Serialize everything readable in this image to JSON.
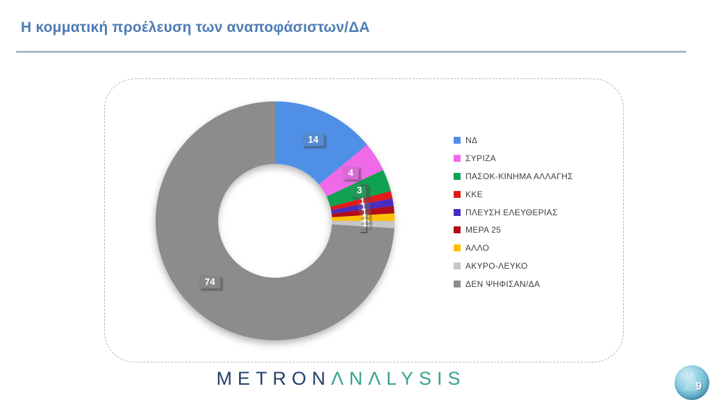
{
  "page": {
    "title": "Η κομματική προέλευση των αναποφάσιστων/ΔΑ",
    "page_number": "9"
  },
  "accents": {
    "title_color": "#4d7cb3",
    "title_rule_color": "#9fb4c7",
    "badge_color": "#6cb8d4",
    "logo_left_color": "#24416e",
    "logo_right_color": "#35a390"
  },
  "footer": {
    "logo_left": "METRON",
    "logo_right": "ΛΝΛLYSIS"
  },
  "chart_data": {
    "type": "pie",
    "subtype": "donut",
    "title": "Η κομματική προέλευση των αναποφάσιστων/ΔΑ",
    "start_angle_deg": 0,
    "direction": "clockwise",
    "legend_position": "right",
    "total": 100,
    "inner_radius_ratio": 0.48,
    "series": [
      {
        "label": "ΝΔ",
        "value": 14,
        "color": "#4f90e6"
      },
      {
        "label": "ΣΥΡΙΖΑ",
        "value": 4,
        "color": "#ee6ae9"
      },
      {
        "label": "ΠΑΣΟΚ-ΚΙΝΗΜΑ ΑΛΛΑΓΗΣ",
        "value": 3,
        "color": "#10a152"
      },
      {
        "label": "ΚΚΕ",
        "value": 1,
        "color": "#e01a1a"
      },
      {
        "label": "ΠΛΕΥΣΗ ΕΛΕΥΘΕΡΙΑΣ",
        "value": 1,
        "color": "#4a2dbe"
      },
      {
        "label": "ΜΕΡΑ 25",
        "value": 1,
        "color": "#b00d1a"
      },
      {
        "label": "ΑΛΛΟ",
        "value": 1,
        "color": "#ffc000"
      },
      {
        "label": "ΑΚΥΡΟ-ΛΕΥΚΟ",
        "value": 1,
        "color": "#c6c6c6"
      },
      {
        "label": "ΔΕΝ ΨΗΦΙΣΑΝ/ΔΑ",
        "value": 74,
        "color": "#8c8c8c"
      }
    ]
  }
}
